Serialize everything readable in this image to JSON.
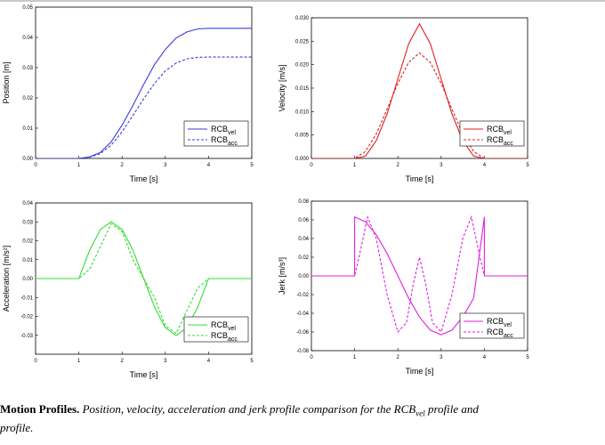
{
  "chart_data": [
    {
      "type": "line",
      "name": "position",
      "xlabel": "Time [s]",
      "ylabel": "Position [m]",
      "xlim": [
        0,
        5
      ],
      "ylim": [
        0,
        0.05
      ],
      "xticks": [
        "0",
        "1",
        "2",
        "3",
        "4",
        "5"
      ],
      "yticks": [
        "0.00",
        "0.01",
        "0.02",
        "0.03",
        "0.04",
        "0.05"
      ],
      "ytick_values": [
        0,
        0.01,
        0.02,
        0.03,
        0.04,
        0.05
      ],
      "legend": "bottom-right",
      "color": "#3a3adf",
      "series": [
        {
          "name": "vel",
          "style": "solid",
          "x": [
            0,
            1,
            1.25,
            1.5,
            1.75,
            2,
            2.25,
            2.5,
            2.75,
            3,
            3.25,
            3.5,
            3.75,
            4,
            5
          ],
          "y": [
            0,
            0,
            0.0005,
            0.002,
            0.0055,
            0.011,
            0.0175,
            0.0245,
            0.031,
            0.036,
            0.0398,
            0.0418,
            0.0428,
            0.043,
            0.043
          ]
        },
        {
          "name": "acc",
          "style": "dashed",
          "x": [
            0,
            1,
            1.25,
            1.5,
            1.75,
            2,
            2.25,
            2.5,
            2.75,
            3,
            3.25,
            3.5,
            3.75,
            4,
            5
          ],
          "y": [
            0,
            0,
            0.0004,
            0.0016,
            0.0044,
            0.0088,
            0.0142,
            0.0197,
            0.0248,
            0.0289,
            0.0315,
            0.0329,
            0.0334,
            0.0335,
            0.0335
          ]
        }
      ]
    },
    {
      "type": "line",
      "name": "velocity",
      "xlabel": "Time [s]",
      "ylabel": "Velocity [m/s]",
      "xlim": [
        0,
        5
      ],
      "ylim": [
        0,
        0.03
      ],
      "xticks": [
        "0",
        "1",
        "2",
        "3",
        "4",
        "5"
      ],
      "yticks": [
        "0.000",
        "0.005",
        "0.010",
        "0.015",
        "0.020",
        "0.025",
        "0.030"
      ],
      "ytick_values": [
        0,
        0.005,
        0.01,
        0.015,
        0.02,
        0.025,
        0.03
      ],
      "legend": "bottom-right",
      "color": "#e02020",
      "series": [
        {
          "name": "vel",
          "style": "solid",
          "x": [
            0,
            1,
            1.25,
            1.5,
            1.75,
            2,
            2.25,
            2.5,
            2.75,
            3,
            3.25,
            3.5,
            3.75,
            4,
            5
          ],
          "y": [
            0,
            0,
            0.0005,
            0.0038,
            0.0095,
            0.017,
            0.0245,
            0.0287,
            0.0245,
            0.017,
            0.0095,
            0.0038,
            0.0005,
            0,
            0
          ]
        },
        {
          "name": "acc",
          "style": "dashed",
          "x": [
            0,
            1,
            1.25,
            1.5,
            1.75,
            2,
            2.25,
            2.5,
            2.75,
            3,
            3.25,
            3.5,
            3.75,
            4,
            5
          ],
          "y": [
            0,
            0,
            0.0015,
            0.0052,
            0.0105,
            0.016,
            0.0205,
            0.0225,
            0.0205,
            0.016,
            0.0105,
            0.0052,
            0.0015,
            0,
            0
          ]
        }
      ]
    },
    {
      "type": "line",
      "name": "acceleration",
      "xlabel": "Time [s]",
      "ylabel": "Acceleration [m/s²]",
      "xlim": [
        0,
        5
      ],
      "ylim": [
        -0.04,
        0.04
      ],
      "xticks": [
        "0",
        "1",
        "2",
        "3",
        "4",
        "5"
      ],
      "yticks": [
        "-0.03",
        "-0.02",
        "-0.01",
        "0.00",
        "0.01",
        "0.02",
        "0.03",
        "0.04"
      ],
      "ytick_values": [
        -0.03,
        -0.02,
        -0.01,
        0,
        0.01,
        0.02,
        0.03,
        0.04
      ],
      "legend": "bottom-right",
      "color": "#33dd33",
      "series": [
        {
          "name": "vel",
          "style": "solid",
          "x": [
            0,
            1,
            1.25,
            1.5,
            1.75,
            2,
            2.25,
            2.5,
            2.75,
            3,
            3.25,
            3.5,
            3.75,
            4,
            5
          ],
          "y": [
            0,
            0,
            0.015,
            0.026,
            0.03,
            0.026,
            0.015,
            0,
            -0.015,
            -0.026,
            -0.03,
            -0.026,
            -0.015,
            0,
            0
          ]
        },
        {
          "name": "acc",
          "style": "dashed",
          "x": [
            0,
            1,
            1.25,
            1.5,
            1.75,
            2,
            2.25,
            2.5,
            2.75,
            3,
            3.25,
            3.5,
            3.75,
            4,
            5
          ],
          "y": [
            0,
            0,
            0.005,
            0.017,
            0.029,
            0.025,
            0.01,
            0,
            -0.01,
            -0.025,
            -0.029,
            -0.017,
            -0.005,
            0,
            0
          ]
        }
      ]
    },
    {
      "type": "line",
      "name": "jerk",
      "xlabel": "Time [s]",
      "ylabel": "Jerk [m/s³]",
      "xlim": [
        0,
        5
      ],
      "ylim": [
        -0.08,
        0.08
      ],
      "xticks": [
        "0",
        "1",
        "2",
        "3",
        "4",
        "5"
      ],
      "yticks": [
        "-0.08",
        "-0.06",
        "-0.04",
        "-0.02",
        "0.00",
        "0.02",
        "0.04",
        "0.06",
        "0.08"
      ],
      "ytick_values": [
        -0.08,
        -0.06,
        -0.04,
        -0.02,
        0,
        0.02,
        0.04,
        0.06,
        0.08
      ],
      "legend": "bottom-right",
      "color": "#e020e0",
      "series": [
        {
          "name": "vel",
          "style": "solid",
          "x": [
            0,
            1,
            1,
            1.25,
            1.5,
            1.75,
            2,
            2.25,
            2.5,
            2.75,
            3,
            3.25,
            3.5,
            3.75,
            4,
            4,
            5
          ],
          "y": [
            0,
            0,
            0.063,
            0.058,
            0.044,
            0.024,
            0,
            -0.024,
            -0.044,
            -0.058,
            -0.063,
            -0.058,
            -0.044,
            -0.024,
            0.063,
            0,
            0
          ]
        },
        {
          "name": "acc",
          "style": "dashed",
          "x": [
            0,
            1,
            1.1,
            1.3,
            1.5,
            1.75,
            2,
            2.2,
            2.35,
            2.5,
            2.65,
            2.8,
            3,
            3.25,
            3.5,
            3.7,
            3.9,
            4,
            5
          ],
          "y": [
            0,
            0,
            0.02,
            0.063,
            0.04,
            -0.02,
            -0.06,
            -0.05,
            -0.01,
            0.02,
            -0.01,
            -0.05,
            -0.06,
            -0.02,
            0.04,
            0.063,
            0.02,
            0,
            0
          ]
        }
      ]
    }
  ],
  "legend": {
    "label_base": "RCB",
    "sub_vel": "vel",
    "sub_acc": "acc"
  },
  "caption": {
    "bold": "Motion Profiles.",
    "italic_before": " Position, velocity, acceleration and jerk profile comparison for the ",
    "rcb": "RCB",
    "sub": "vel",
    "italic_after": " profile and",
    "line2": "profile."
  }
}
